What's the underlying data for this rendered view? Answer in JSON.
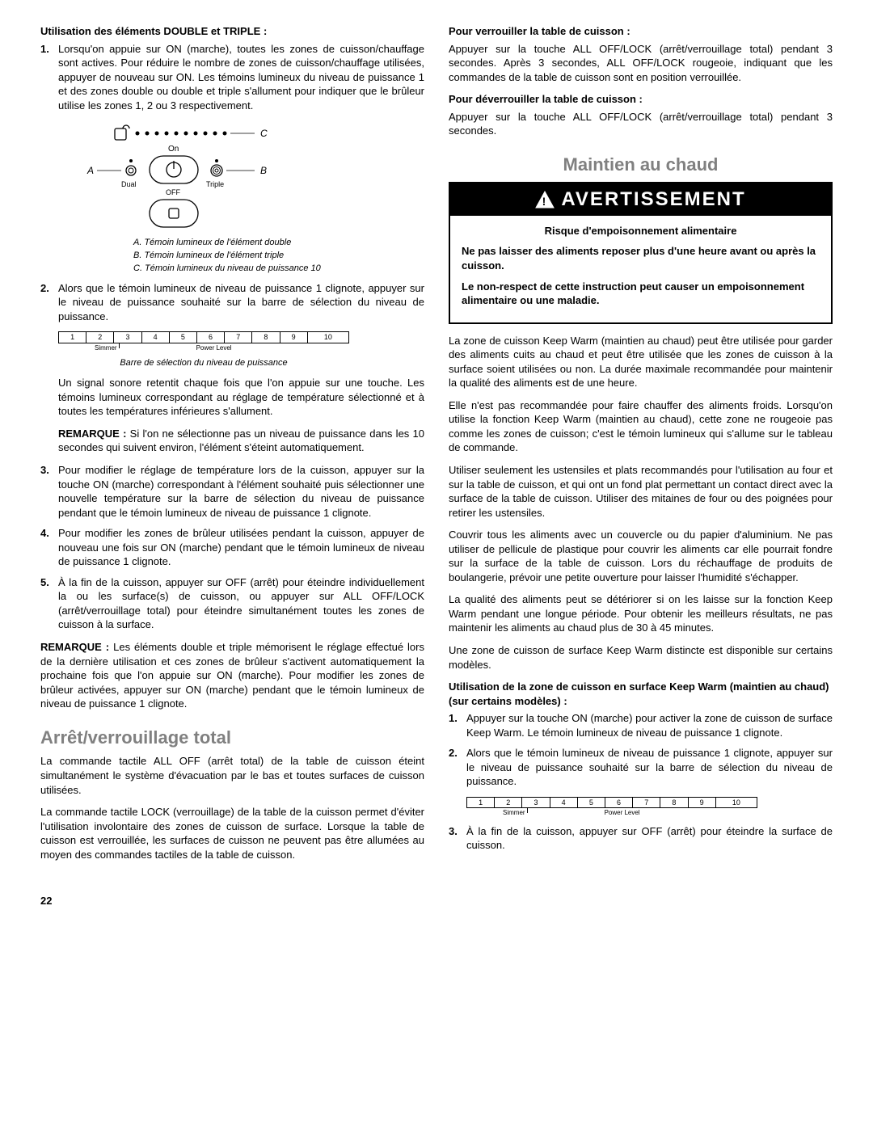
{
  "left": {
    "h1": "Utilisation des éléments DOUBLE et TRIPLE :",
    "li1": "Lorsqu'on appuie sur ON (marche), toutes les zones de cuisson/chauffage sont actives. Pour réduire le nombre de zones de cuisson/chauffage utilisées, appuyer de nouveau sur ON. Les témoins lumineux du niveau de puissance 1 et des zones double ou double et triple s'allument pour indiquer que le brûleur utilise les zones 1, 2 ou 3 respectivement.",
    "diagram": {
      "A": "A",
      "B": "B",
      "C": "C",
      "on": "On",
      "off": "OFF",
      "dual": "Dual",
      "triple": "Triple",
      "cap1": "A. Témoin lumineux de l'élément double",
      "cap2": "B. Témoin lumineux de l'élément triple",
      "cap3": "C. Témoin lumineux du niveau de puissance 10"
    },
    "li2": "Alors que le témoin lumineux de niveau de puissance 1 clignote, appuyer sur le niveau de puissance souhaité sur la barre de sélection du niveau de puissance.",
    "bar": {
      "labels": [
        "1",
        "2",
        "3",
        "4",
        "5",
        "6",
        "7",
        "8",
        "9",
        "10"
      ],
      "simmer": "Simmer",
      "power": "Power Level",
      "caption": "Barre de sélection du niveau de puissance"
    },
    "p3": "Un signal sonore retentit chaque fois que l'on appuie sur une touche. Les témoins lumineux correspondant au réglage de température sélectionné et à toutes les températures inférieures s'allument.",
    "note1_label": "REMARQUE :",
    "note1": " Si l'on ne sélectionne pas un niveau de puissance dans les 10 secondes qui suivent environ, l'élément s'éteint automatiquement.",
    "li3": "Pour modifier le réglage de température lors de la cuisson, appuyer sur la touche ON (marche) correspondant à l'élément souhaité puis sélectionner une nouvelle température sur la barre de sélection du niveau de puissance pendant que le témoin lumineux de niveau de puissance 1 clignote.",
    "li4": "Pour modifier les zones de brûleur utilisées pendant la cuisson, appuyer de nouveau une fois sur ON (marche) pendant que le témoin lumineux de niveau de puissance 1 clignote.",
    "li5": "À la fin de la cuisson, appuyer sur OFF (arrêt) pour éteindre individuellement la ou les surface(s) de cuisson, ou appuyer sur ALL OFF/LOCK (arrêt/verrouillage total) pour éteindre simultanément toutes les zones de cuisson à la surface.",
    "note2_label": "REMARQUE :",
    "note2": " Les éléments double et triple mémorisent le réglage effectué lors de la dernière utilisation et ces zones de brûleur s'activent automatiquement la prochaine fois que l'on appuie sur ON (marche). Pour modifier les zones de brûleur activées, appuyer sur ON (marche) pendant que le témoin lumineux de niveau de puissance 1 clignote.",
    "h2": "Arrêt/verrouillage total",
    "p4": "La commande tactile ALL OFF (arrêt total) de la table de cuisson éteint simultanément le système d'évacuation par le bas et toutes surfaces de cuisson utilisées.",
    "p5": "La commande tactile LOCK (verrouillage) de la table de la cuisson permet d'éviter l'utilisation involontaire des zones de cuisson de surface. Lorsque la table de cuisson est verrouillée, les surfaces de cuisson ne peuvent pas être allumées au moyen des commandes tactiles de la table de cuisson."
  },
  "right": {
    "h1": "Pour verrouiller la table de cuisson :",
    "p1": "Appuyer sur la touche ALL OFF/LOCK (arrêt/verrouillage total) pendant 3 secondes. Après 3 secondes, ALL OFF/LOCK rougeoie, indiquant que les commandes de la table de cuisson sont en position verrouillée.",
    "h2": "Pour déverrouiller la table de cuisson :",
    "p2": "Appuyer sur la touche ALL OFF/LOCK (arrêt/verrouillage total) pendant 3 secondes.",
    "h3": "Maintien au chaud",
    "warn_head": "AVERTISSEMENT",
    "warn_title": "Risque d'empoisonnement alimentaire",
    "warn_b1": "Ne pas laisser des aliments reposer plus d'une heure avant ou après la cuisson.",
    "warn_b2": "Le non-respect de cette instruction peut causer un empoisonnement alimentaire ou une maladie.",
    "p3": "La zone de cuisson Keep Warm (maintien au chaud) peut être utilisée pour garder des aliments cuits au chaud et peut être utilisée que les zones de cuisson à la surface soient utilisées ou non. La durée maximale recommandée pour maintenir la qualité des aliments est de une heure.",
    "p4": "Elle n'est pas recommandée pour faire chauffer des aliments froids. Lorsqu'on utilise la fonction Keep Warm (maintien au chaud), cette zone ne rougeoie pas comme les zones de cuisson; c'est le témoin lumineux qui s'allume sur le tableau de commande.",
    "p5": "Utiliser seulement les ustensiles et plats recommandés pour l'utilisation au four et sur la table de cuisson, et qui ont un fond plat permettant un contact direct avec la surface de la table de cuisson. Utiliser des mitaines de four ou des poignées pour retirer les ustensiles.",
    "p6": "Couvrir tous les aliments avec un couvercle ou du papier d'aluminium. Ne pas utiliser de pellicule de plastique pour couvrir les aliments car elle pourrait fondre sur la surface de la table de cuisson. Lors du réchauffage de produits de boulangerie, prévoir une petite ouverture pour laisser l'humidité s'échapper.",
    "p7": "La qualité des aliments peut se détériorer si on les laisse sur la fonction Keep Warm pendant une longue période. Pour obtenir les meilleurs résultats, ne pas maintenir les aliments au chaud plus de 30 à 45 minutes.",
    "p8": "Une zone de cuisson de surface Keep Warm distincte est disponible sur certains modèles.",
    "h4": "Utilisation de la zone de cuisson en surface Keep Warm (maintien au chaud) (sur certains modèles) :",
    "li1": "Appuyer sur la touche ON (marche) pour activer la zone de cuisson de surface Keep Warm. Le témoin lumineux de niveau de puissance 1 clignote.",
    "li2": "Alors que le témoin lumineux de niveau de puissance 1 clignote, appuyer sur le niveau de puissance souhaité sur la barre de sélection du niveau de puissance.",
    "li3": "À la fin de la cuisson, appuyer sur OFF (arrêt) pour éteindre la surface de cuisson."
  },
  "page": "22"
}
